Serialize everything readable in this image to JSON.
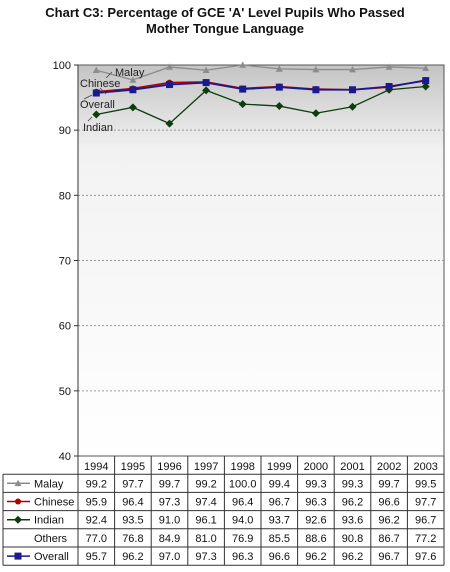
{
  "title_line1": "Chart C3: Percentage of GCE 'A' Level Pupils Who Passed",
  "title_line2": "Mother Tongue Language",
  "chart_data": {
    "type": "line",
    "title": "Chart C3: Percentage of GCE 'A' Level Pupils Who Passed Mother Tongue Language",
    "categories": [
      "1994",
      "1995",
      "1996",
      "1997",
      "1998",
      "1999",
      "2000",
      "2001",
      "2002",
      "2003"
    ],
    "ylim": [
      40,
      100
    ],
    "yticks": [
      40,
      50,
      60,
      70,
      80,
      90,
      100
    ],
    "grid": true,
    "legend": "table-below",
    "series": [
      {
        "name": "Malay",
        "color": "#8c8c8c",
        "marker": "triangle",
        "plotted": true,
        "values": [
          99.2,
          97.7,
          99.7,
          99.2,
          100.0,
          99.4,
          99.3,
          99.3,
          99.7,
          99.5
        ],
        "display": [
          "99.2",
          "97.7",
          "99.7",
          "99.2",
          "100.0",
          "99.4",
          "99.3",
          "99.3",
          "99.7",
          "99.5"
        ]
      },
      {
        "name": "Chinese",
        "color": "#b00000",
        "marker": "circle",
        "plotted": true,
        "values": [
          95.9,
          96.4,
          97.3,
          97.4,
          96.4,
          96.7,
          96.3,
          96.2,
          96.6,
          97.7
        ],
        "display": [
          "95.9",
          "96.4",
          "97.3",
          "97.4",
          "96.4",
          "96.7",
          "96.3",
          "96.2",
          "96.6",
          "97.7"
        ]
      },
      {
        "name": "Indian",
        "color": "#0d3d0d",
        "marker": "diamond",
        "plotted": true,
        "values": [
          92.4,
          93.5,
          91.0,
          96.1,
          94.0,
          93.7,
          92.6,
          93.6,
          96.2,
          96.7
        ],
        "display": [
          "92.4",
          "93.5",
          "91.0",
          "96.1",
          "94.0",
          "93.7",
          "92.6",
          "93.6",
          "96.2",
          "96.7"
        ]
      },
      {
        "name": "Others",
        "color": "#000000",
        "marker": "none",
        "plotted": false,
        "values": [
          77.0,
          76.8,
          84.9,
          81.0,
          76.9,
          85.5,
          88.6,
          90.8,
          86.7,
          77.2
        ],
        "display": [
          "77.0",
          "76.8",
          "84.9",
          "81.0",
          "76.9",
          "85.5",
          "88.6",
          "90.8",
          "86.7",
          "77.2"
        ]
      },
      {
        "name": "Overall",
        "color": "#1a1a8c",
        "marker": "square",
        "plotted": true,
        "values": [
          95.7,
          96.2,
          97.0,
          97.3,
          96.3,
          96.6,
          96.2,
          96.2,
          96.7,
          97.6
        ],
        "display": [
          "95.7",
          "96.2",
          "97.0",
          "97.3",
          "96.3",
          "96.6",
          "96.2",
          "96.2",
          "96.7",
          "97.6"
        ]
      }
    ],
    "annotations": [
      "Malay",
      "Chinese",
      "Overall",
      "Indian"
    ]
  }
}
